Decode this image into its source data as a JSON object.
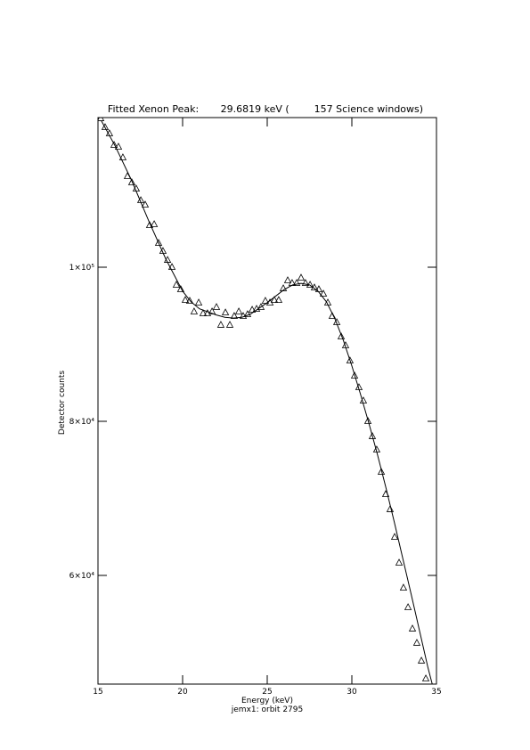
{
  "chart_data": {
    "type": "line",
    "title": "Fitted Xenon Peak:       29.6819 keV (        157 Science windows)",
    "x_label": "Energy (keV)",
    "subtitle": "jemx1: orbit 2795",
    "y_label": "Detector counts",
    "xlim": [
      15,
      35
    ],
    "xticks": [
      15,
      20,
      25,
      30,
      35
    ],
    "ylim": [
      45896,
      119422
    ],
    "yticks": [
      {
        "value": 60000,
        "label": "6×10⁴"
      },
      {
        "value": 80000,
        "label": "8×10⁴"
      },
      {
        "value": 100000,
        "label": "1×10⁵"
      }
    ],
    "series": [
      {
        "mode": "markers",
        "marker": "triangle",
        "color": "#000000",
        "x": [
          15.16,
          15.42,
          15.68,
          15.95,
          16.21,
          16.47,
          16.74,
          17.0,
          17.26,
          17.53,
          17.79,
          18.05,
          18.32,
          18.58,
          18.84,
          19.11,
          19.37,
          19.63,
          19.89,
          20.16,
          20.42,
          20.68,
          20.95,
          21.21,
          21.47,
          21.74,
          22.0,
          22.26,
          22.53,
          22.79,
          23.05,
          23.32,
          23.58,
          23.84,
          24.11,
          24.37,
          24.63,
          24.89,
          25.16,
          25.42,
          25.68,
          25.95,
          26.21,
          26.47,
          26.74,
          27.0,
          27.26,
          27.53,
          27.79,
          28.05,
          28.32,
          28.58,
          28.84,
          29.11,
          29.37,
          29.63,
          29.89,
          30.16,
          30.42,
          30.68,
          30.95,
          31.21,
          31.47,
          31.74,
          32.0,
          32.26,
          32.53,
          32.79,
          33.05,
          33.32,
          33.58,
          33.84,
          34.11,
          34.37
        ],
        "values": [
          119300,
          118150,
          117340,
          115840,
          115610,
          114220,
          111790,
          110980,
          110170,
          108670,
          108090,
          105430,
          105550,
          103120,
          102080,
          100920,
          100000,
          97690,
          97110,
          95720,
          95610,
          94220,
          95380,
          93990,
          93990,
          94220,
          94800,
          92490,
          94100,
          92490,
          93640,
          94220,
          93640,
          93870,
          94450,
          94570,
          94800,
          95610,
          95380,
          95720,
          95720,
          97230,
          98270,
          97920,
          97920,
          98610,
          97920,
          97690,
          97340,
          97110,
          96530,
          95380,
          93640,
          92830,
          90980,
          89830,
          87860,
          85900,
          84390,
          82660,
          80000,
          78040,
          76300,
          73410,
          70520,
          68560,
          64970,
          61620,
          58380,
          55840,
          53070,
          51220,
          48910,
          46590
        ]
      },
      {
        "mode": "lines",
        "color": "#000000",
        "x": [
          15.2,
          16,
          17,
          18,
          19,
          20,
          20.5,
          21,
          22,
          22.5,
          23,
          23.5,
          24,
          25,
          26,
          26.5,
          27,
          27.5,
          28,
          28.5,
          29,
          29.5,
          30,
          30.5,
          31,
          31.5,
          32,
          32.5,
          33,
          33.5,
          34,
          34.5,
          34.75
        ],
        "values": [
          119000,
          115800,
          111200,
          106000,
          101100,
          96900,
          95500,
          94600,
          93800,
          93500,
          93400,
          93500,
          93900,
          95400,
          97100,
          97700,
          97900,
          97700,
          96900,
          95500,
          93300,
          90500,
          87200,
          83600,
          79800,
          75800,
          71500,
          67000,
          62300,
          57600,
          52800,
          48000,
          45900
        ]
      }
    ]
  }
}
